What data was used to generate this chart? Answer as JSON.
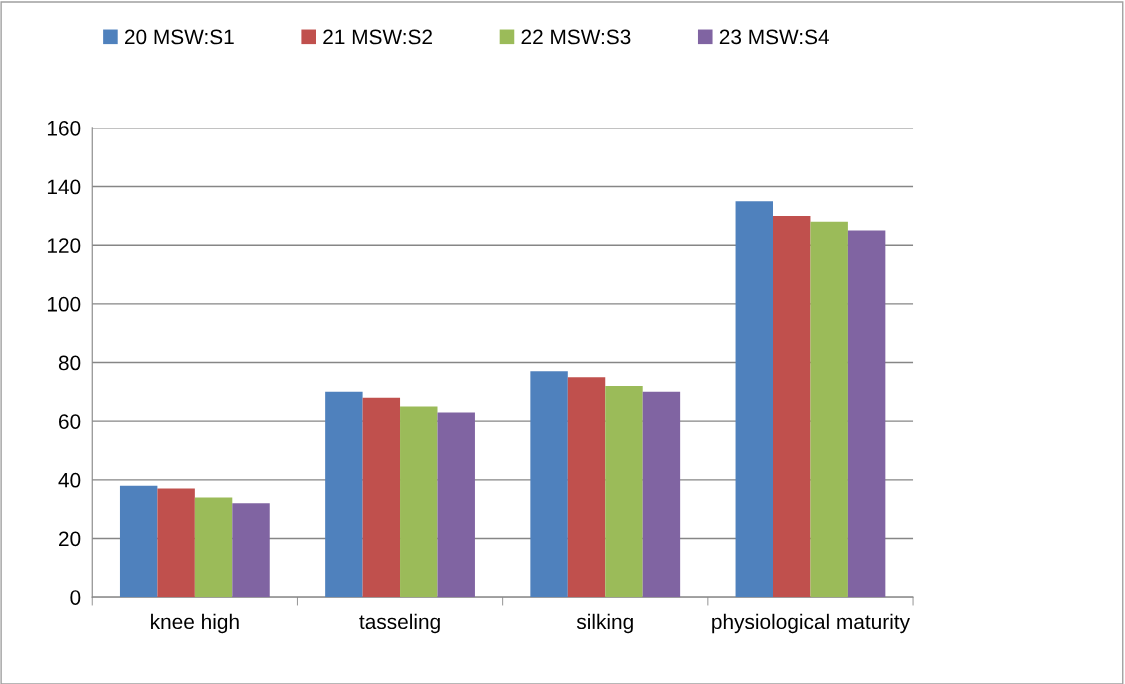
{
  "chart_data": {
    "type": "bar",
    "categories": [
      "knee high",
      "tasseling",
      "silking",
      "physiological maturity"
    ],
    "series": [
      {
        "name": "20 MSW:S1",
        "color": "#4f81bd",
        "values": [
          38,
          70,
          77,
          135
        ]
      },
      {
        "name": "21 MSW:S2",
        "color": "#c0504d",
        "values": [
          37,
          68,
          75,
          130
        ]
      },
      {
        "name": "22 MSW:S3",
        "color": "#9bbb59",
        "values": [
          34,
          65,
          72,
          128
        ]
      },
      {
        "name": "23 MSW:S4",
        "color": "#8064a2",
        "values": [
          32,
          63,
          70,
          125
        ]
      }
    ],
    "ylim": [
      0,
      160
    ],
    "yticks": [
      0,
      20,
      40,
      60,
      80,
      100,
      120,
      140,
      160
    ],
    "grid": "y",
    "legend": "top"
  }
}
